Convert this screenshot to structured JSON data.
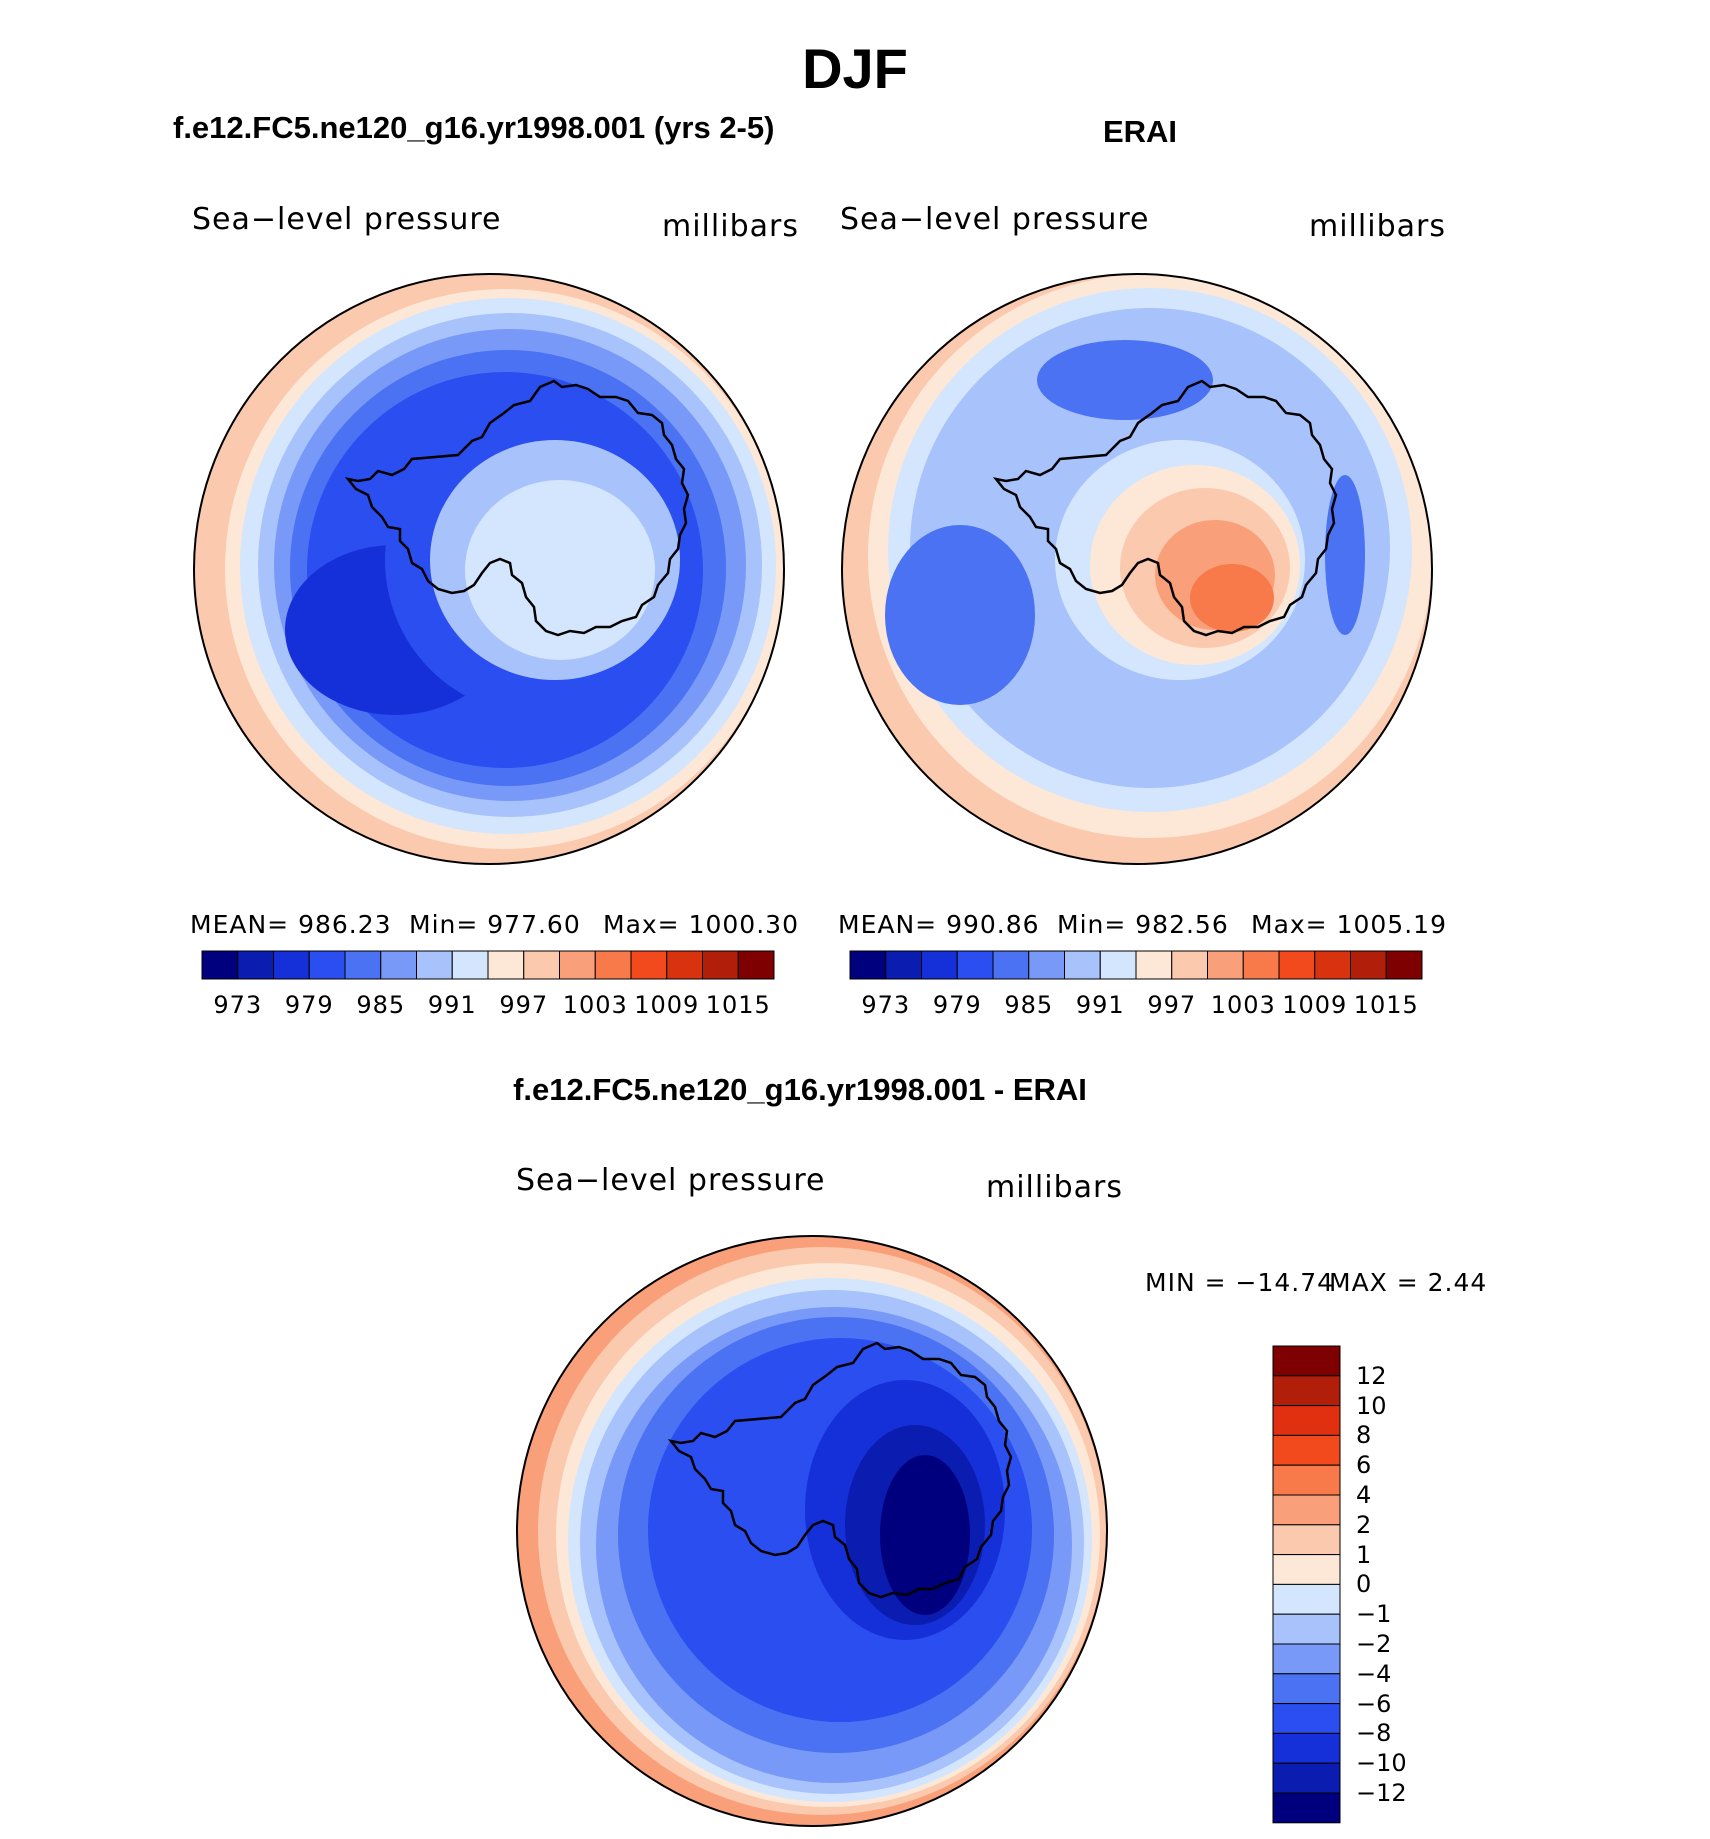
{
  "figure": {
    "title": "DJF",
    "panels": [
      {
        "title": "f.e12.FC5.ne120_g16.yr1998.001 (yrs 2-5)",
        "variable": "Sea−level pressure",
        "units": "millibars",
        "stats": {
          "mean_label": "MEAN=",
          "mean": "986.23",
          "min_label": "Min=",
          "min": "977.60",
          "max_label": "Max=",
          "max": "1000.30"
        }
      },
      {
        "title": "ERAI",
        "variable": "Sea−level pressure",
        "units": "millibars",
        "stats": {
          "mean_label": "MEAN=",
          "mean": "990.86",
          "min_label": "Min=",
          "min": "982.56",
          "max_label": "Max=",
          "max": "1005.19"
        }
      },
      {
        "title": "f.e12.FC5.ne120_g16.yr1998.001 - ERAI",
        "variable": "Sea−level pressure",
        "units": "millibars",
        "stats": {
          "min_label": "MIN =",
          "min": "−14.74",
          "max_label": "MAX =",
          "max": "2.44"
        }
      }
    ],
    "abs_colorbar": {
      "labels": [
        "973",
        "979",
        "985",
        "991",
        "997",
        "1003",
        "1009",
        "1015"
      ],
      "colors": [
        "#00007f",
        "#0b1cb0",
        "#1530d8",
        "#2a4ef0",
        "#4a72f2",
        "#7899f7",
        "#a8c2fb",
        "#d4e6fd",
        "#fde7d7",
        "#fbc9ad",
        "#f9a07a",
        "#f87a4a",
        "#f24a1c",
        "#d9320f",
        "#b11f0b",
        "#7f0000"
      ]
    },
    "diff_colorbar": {
      "labels": [
        "12",
        "10",
        "8",
        "6",
        "4",
        "2",
        "1",
        "0",
        "−1",
        "−2",
        "−4",
        "−6",
        "−8",
        "−10",
        "−12"
      ],
      "colors": [
        "#7f0000",
        "#b11f0b",
        "#e03010",
        "#f24a1c",
        "#f87a4a",
        "#f9a07a",
        "#fbc9ad",
        "#fde7d7",
        "#d4e6fd",
        "#a8c2fb",
        "#7899f7",
        "#4a72f2",
        "#2a4ef0",
        "#1530d8",
        "#0b1cb0",
        "#00007f"
      ]
    }
  }
}
